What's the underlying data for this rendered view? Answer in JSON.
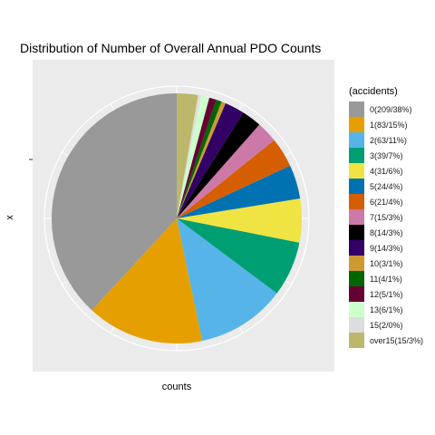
{
  "chart_data": {
    "type": "pie",
    "title": "Distribution of Number of Overall Annual PDO Counts",
    "xlabel": "counts",
    "ylabel": "x",
    "legend_title": "(accidents)",
    "legend_position": "right",
    "panel_background": "#ebebeb",
    "grid": true,
    "slices": [
      {
        "label": "0(209/38%)",
        "value": 209,
        "color": "#999999"
      },
      {
        "label": "1(83/15%)",
        "value": 83,
        "color": "#E69F00"
      },
      {
        "label": "2(63/11%)",
        "value": 63,
        "color": "#56B4E9"
      },
      {
        "label": "3(39/7%)",
        "value": 39,
        "color": "#009E73"
      },
      {
        "label": "4(31/6%)",
        "value": 31,
        "color": "#F0E442"
      },
      {
        "label": "5(24/4%)",
        "value": 24,
        "color": "#0072B2"
      },
      {
        "label": "6(21/4%)",
        "value": 21,
        "color": "#D55E00"
      },
      {
        "label": "7(15/3%)",
        "value": 15,
        "color": "#CC79A7"
      },
      {
        "label": "8(14/3%)",
        "value": 14,
        "color": "#000000"
      },
      {
        "label": "9(14/3%)",
        "value": 14,
        "color": "#330066"
      },
      {
        "label": "10(3/1%)",
        "value": 3,
        "color": "#CC9933"
      },
      {
        "label": "11(4/1%)",
        "value": 4,
        "color": "#006600"
      },
      {
        "label": "12(5/1%)",
        "value": 5,
        "color": "#660033"
      },
      {
        "label": "13(6/1%)",
        "value": 6,
        "color": "#CCFFCC"
      },
      {
        "label": "15(2/0%)",
        "value": 2,
        "color": "#DDDDDD"
      },
      {
        "label": "over15(15/3%)",
        "value": 15,
        "color": "#BDB76B"
      }
    ]
  }
}
